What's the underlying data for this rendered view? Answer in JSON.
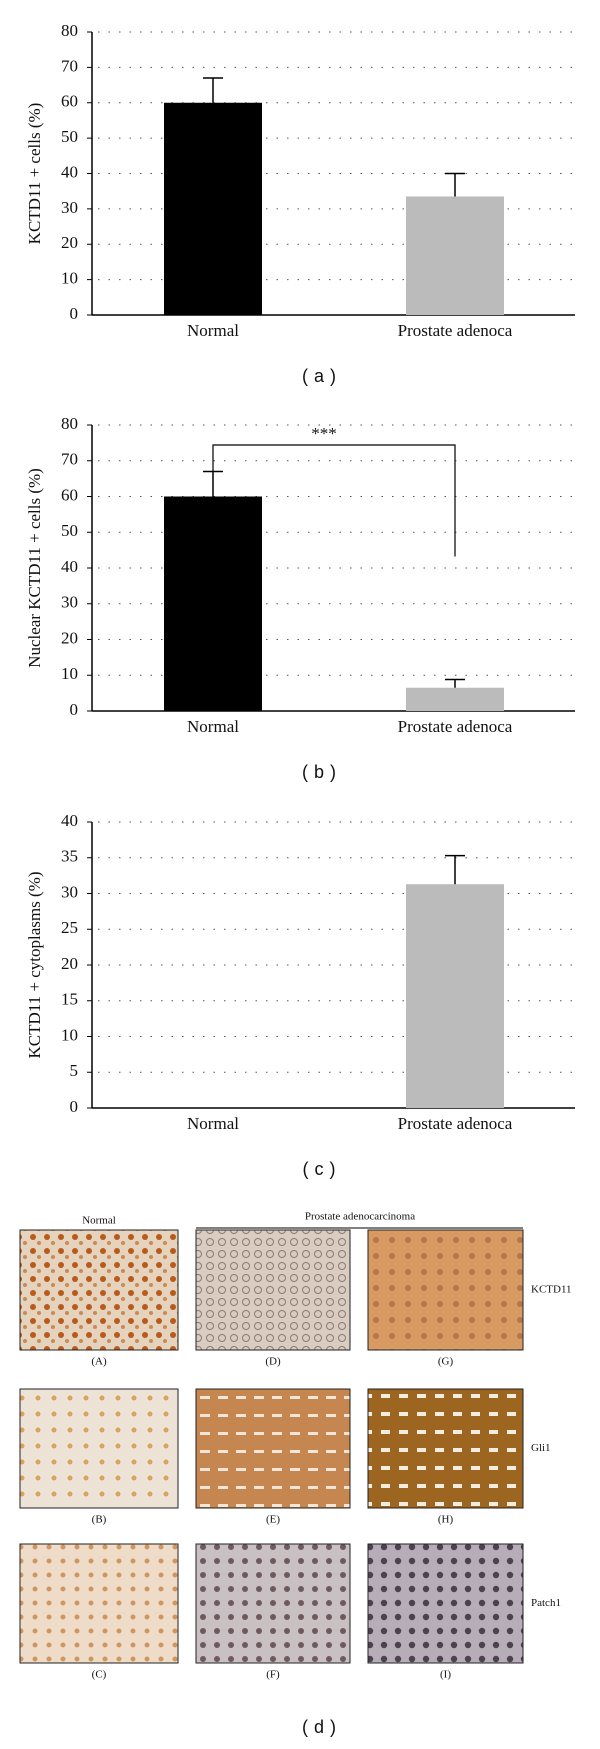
{
  "chart_data": [
    {
      "type": "bar",
      "caption": "(a)",
      "ylabel": "KCTD11 + cells (%)",
      "categories": [
        "Normal",
        "Prostate adenoca"
      ],
      "values": [
        60,
        33.5
      ],
      "errors": [
        7,
        6.5
      ],
      "colors": [
        "#000000",
        "#bbbbbb"
      ],
      "ylim": [
        0,
        80
      ],
      "yticks": [
        0,
        10,
        20,
        30,
        40,
        50,
        60,
        70,
        80
      ],
      "grid": true
    },
    {
      "type": "bar",
      "caption": "(b)",
      "ylabel": "Nuclear KCTD11 + cells (%)",
      "categories": [
        "Normal",
        "Prostate adenoca"
      ],
      "values": [
        60,
        6.5
      ],
      "errors": [
        7,
        2.3
      ],
      "colors": [
        "#000000",
        "#bbbbbb"
      ],
      "ylim": [
        0,
        80
      ],
      "yticks": [
        0,
        10,
        20,
        30,
        40,
        50,
        60,
        70,
        80
      ],
      "grid": true,
      "annotation": "***"
    },
    {
      "type": "bar",
      "caption": "(c)",
      "ylabel": "KCTD11 + cytoplasms (%)",
      "categories": [
        "Normal",
        "Prostate adenoca"
      ],
      "values": [
        0,
        31.3
      ],
      "errors": [
        null,
        4
      ],
      "colors": [
        "#000000",
        "#bbbbbb"
      ],
      "ylim": [
        0,
        40
      ],
      "yticks": [
        0,
        5,
        10,
        15,
        20,
        25,
        30,
        35,
        40
      ],
      "grid": true
    }
  ],
  "panel": {
    "column_headers": [
      "Normal",
      "Prostate adenocarcinoma"
    ],
    "row_labels": [
      "KCTD11",
      "Gli1",
      "Patch1"
    ],
    "image_labels": [
      [
        "(A)",
        "(D)",
        "(G)"
      ],
      [
        "(B)",
        "(E)",
        "(H)"
      ],
      [
        "(C)",
        "(F)",
        "(I)"
      ]
    ],
    "caption": "(d)"
  }
}
